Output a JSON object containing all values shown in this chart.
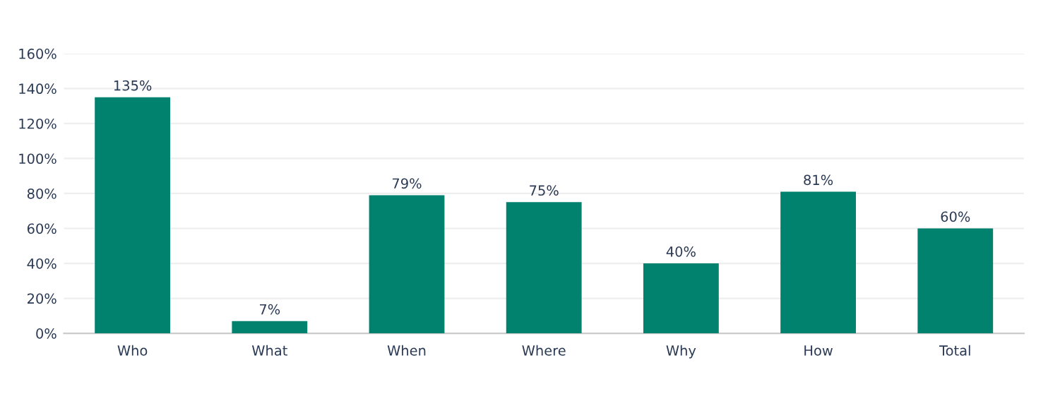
{
  "chart_data": {
    "type": "bar",
    "categories": [
      "Who",
      "What",
      "When",
      "Where",
      "Why",
      "How",
      "Total"
    ],
    "values": [
      135,
      7,
      79,
      75,
      40,
      81,
      60
    ],
    "value_labels": [
      "135%",
      "7%",
      "79%",
      "75%",
      "40%",
      "81%",
      "60%"
    ],
    "color": "#00826f",
    "ylim": [
      0,
      160
    ],
    "yticks": [
      {
        "value": 0,
        "label": "0%"
      },
      {
        "value": 20,
        "label": "20%"
      },
      {
        "value": 40,
        "label": "40%"
      },
      {
        "value": 60,
        "label": "60%"
      },
      {
        "value": 80,
        "label": "80%"
      },
      {
        "value": 100,
        "label": "100%"
      },
      {
        "value": 120,
        "label": "120%"
      },
      {
        "value": 140,
        "label": "140%"
      },
      {
        "value": 160,
        "label": "160%"
      }
    ],
    "grid": "y",
    "legend": false
  }
}
